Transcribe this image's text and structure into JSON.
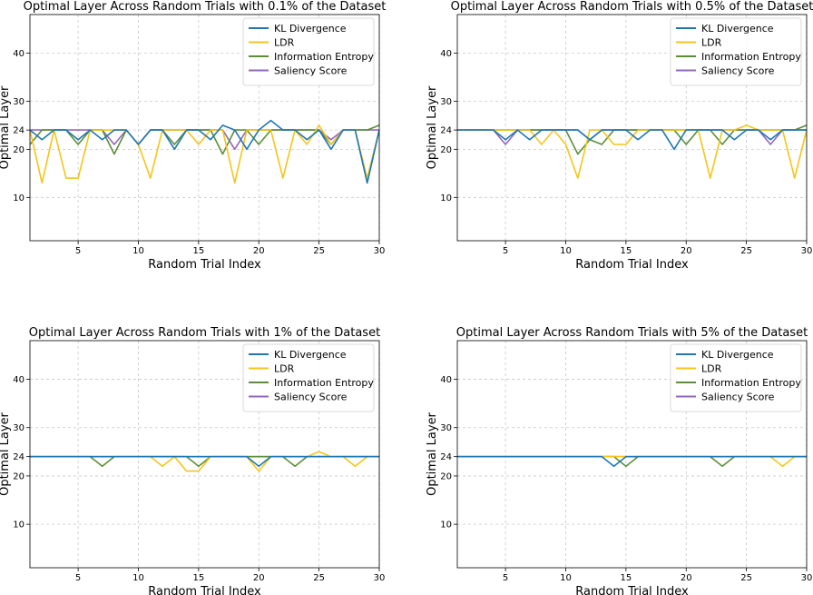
{
  "series_styles": [
    {
      "name": "KL Divergence",
      "color": "#1f77b4"
    },
    {
      "name": "LDR",
      "color": "#f5c518"
    },
    {
      "name": "Information Entropy",
      "color": "#5a8f3a"
    },
    {
      "name": "Saliency Score",
      "color": "#9467bd"
    }
  ],
  "chart_data": [
    {
      "type": "line",
      "title": "Optimal Layer Across Random Trials with 0.1% of the Dataset",
      "xlabel": "Random Trial Index",
      "ylabel": "Optimal Layer",
      "xlim": [
        1,
        30
      ],
      "ylim": [
        1,
        48
      ],
      "xticks": [
        5,
        10,
        15,
        20,
        25,
        30
      ],
      "yticks": [
        10,
        20,
        24,
        30,
        40
      ],
      "grid": true,
      "legend_position": "top-right",
      "x": [
        1,
        2,
        3,
        4,
        5,
        6,
        7,
        8,
        9,
        10,
        11,
        12,
        13,
        14,
        15,
        16,
        17,
        18,
        19,
        20,
        21,
        22,
        23,
        24,
        25,
        26,
        27,
        28,
        29,
        30
      ],
      "series": [
        {
          "name": "KL Divergence",
          "values": [
            24,
            22,
            24,
            24,
            22,
            24,
            22,
            24,
            24,
            21,
            24,
            24,
            20,
            24,
            24,
            22,
            25,
            24,
            20,
            24,
            26,
            24,
            24,
            22,
            24,
            20,
            24,
            24,
            13,
            24
          ]
        },
        {
          "name": "LDR",
          "values": [
            24,
            13,
            24,
            14,
            14,
            24,
            24,
            24,
            24,
            21,
            14,
            24,
            24,
            24,
            21,
            24,
            24,
            13,
            24,
            24,
            24,
            14,
            24,
            21,
            25,
            21,
            24,
            24,
            14,
            24
          ]
        },
        {
          "name": "Information Entropy",
          "values": [
            21,
            24,
            24,
            24,
            21,
            24,
            24,
            19,
            24,
            21,
            24,
            24,
            21,
            24,
            24,
            24,
            19,
            24,
            24,
            21,
            24,
            24,
            24,
            24,
            24,
            21,
            24,
            24,
            24,
            25
          ]
        },
        {
          "name": "Saliency Score",
          "values": [
            24,
            24,
            24,
            24,
            24,
            24,
            24,
            21,
            24,
            21,
            24,
            24,
            24,
            24,
            24,
            24,
            24,
            20,
            24,
            24,
            24,
            24,
            24,
            24,
            24,
            22,
            24,
            24,
            24,
            24
          ]
        }
      ]
    },
    {
      "type": "line",
      "title": "Optimal Layer Across Random Trials with 0.5% of the Dataset",
      "xlabel": "Random Trial Index",
      "ylabel": "Optimal Layer",
      "xlim": [
        1,
        30
      ],
      "ylim": [
        1,
        48
      ],
      "xticks": [
        5,
        10,
        15,
        20,
        25,
        30
      ],
      "yticks": [
        10,
        20,
        24,
        30,
        40
      ],
      "grid": true,
      "legend_position": "top-right",
      "x": [
        1,
        2,
        3,
        4,
        5,
        6,
        7,
        8,
        9,
        10,
        11,
        12,
        13,
        14,
        15,
        16,
        17,
        18,
        19,
        20,
        21,
        22,
        23,
        24,
        25,
        26,
        27,
        28,
        29,
        30
      ],
      "series": [
        {
          "name": "KL Divergence",
          "values": [
            24,
            24,
            24,
            24,
            22,
            24,
            22,
            24,
            24,
            24,
            24,
            22,
            24,
            24,
            24,
            22,
            24,
            24,
            20,
            24,
            24,
            24,
            24,
            22,
            24,
            24,
            22,
            24,
            24,
            24
          ]
        },
        {
          "name": "LDR",
          "values": [
            24,
            24,
            24,
            24,
            24,
            24,
            24,
            21,
            24,
            21,
            14,
            24,
            24,
            21,
            21,
            24,
            24,
            24,
            24,
            24,
            24,
            14,
            24,
            24,
            25,
            24,
            24,
            24,
            14,
            24
          ]
        },
        {
          "name": "Information Entropy",
          "values": [
            24,
            24,
            24,
            24,
            24,
            24,
            24,
            24,
            24,
            24,
            19,
            22,
            21,
            24,
            24,
            24,
            24,
            24,
            24,
            21,
            24,
            24,
            21,
            24,
            24,
            24,
            24,
            24,
            24,
            25
          ]
        },
        {
          "name": "Saliency Score",
          "values": [
            24,
            24,
            24,
            24,
            21,
            24,
            24,
            24,
            24,
            24,
            24,
            22,
            24,
            24,
            24,
            24,
            24,
            24,
            24,
            24,
            24,
            24,
            24,
            24,
            24,
            24,
            21,
            24,
            24,
            24
          ]
        }
      ]
    },
    {
      "type": "line",
      "title": "Optimal Layer Across Random Trials with 1% of the Dataset",
      "xlabel": "Random Trial Index",
      "ylabel": "Optimal Layer",
      "xlim": [
        1,
        30
      ],
      "ylim": [
        1,
        48
      ],
      "xticks": [
        5,
        10,
        15,
        20,
        25,
        30
      ],
      "yticks": [
        10,
        20,
        24,
        30,
        40
      ],
      "grid": true,
      "legend_position": "top-right",
      "x": [
        1,
        2,
        3,
        4,
        5,
        6,
        7,
        8,
        9,
        10,
        11,
        12,
        13,
        14,
        15,
        16,
        17,
        18,
        19,
        20,
        21,
        22,
        23,
        24,
        25,
        26,
        27,
        28,
        29,
        30
      ],
      "series": [
        {
          "name": "KL Divergence",
          "values": [
            24,
            24,
            24,
            24,
            24,
            24,
            24,
            24,
            24,
            24,
            24,
            24,
            24,
            24,
            24,
            24,
            24,
            24,
            24,
            22,
            24,
            24,
            24,
            24,
            24,
            24,
            24,
            24,
            24,
            24
          ]
        },
        {
          "name": "LDR",
          "values": [
            24,
            24,
            24,
            24,
            24,
            24,
            24,
            24,
            24,
            24,
            24,
            22,
            24,
            21,
            21,
            24,
            24,
            24,
            24,
            21,
            24,
            24,
            24,
            24,
            25,
            24,
            24,
            22,
            24,
            24
          ]
        },
        {
          "name": "Information Entropy",
          "values": [
            24,
            24,
            24,
            24,
            24,
            24,
            22,
            24,
            24,
            24,
            24,
            24,
            24,
            24,
            22,
            24,
            24,
            24,
            24,
            24,
            24,
            24,
            22,
            24,
            24,
            24,
            24,
            24,
            24,
            24
          ]
        },
        {
          "name": "Saliency Score",
          "values": [
            24,
            24,
            24,
            24,
            24,
            24,
            24,
            24,
            24,
            24,
            24,
            24,
            24,
            24,
            24,
            24,
            24,
            24,
            24,
            24,
            24,
            24,
            24,
            24,
            24,
            24,
            24,
            24,
            24,
            24
          ]
        }
      ]
    },
    {
      "type": "line",
      "title": "Optimal Layer Across Random Trials with 5% of the Dataset",
      "xlabel": "Random Trial Index",
      "ylabel": "Optimal Layer",
      "xlim": [
        1,
        30
      ],
      "ylim": [
        1,
        48
      ],
      "xticks": [
        5,
        10,
        15,
        20,
        25,
        30
      ],
      "yticks": [
        10,
        20,
        24,
        30,
        40
      ],
      "grid": true,
      "legend_position": "top-right",
      "x": [
        1,
        2,
        3,
        4,
        5,
        6,
        7,
        8,
        9,
        10,
        11,
        12,
        13,
        14,
        15,
        16,
        17,
        18,
        19,
        20,
        21,
        22,
        23,
        24,
        25,
        26,
        27,
        28,
        29,
        30
      ],
      "series": [
        {
          "name": "KL Divergence",
          "values": [
            24,
            24,
            24,
            24,
            24,
            24,
            24,
            24,
            24,
            24,
            24,
            24,
            24,
            22,
            24,
            24,
            24,
            24,
            24,
            24,
            24,
            24,
            24,
            24,
            24,
            24,
            24,
            24,
            24,
            24
          ]
        },
        {
          "name": "LDR",
          "values": [
            24,
            24,
            24,
            24,
            24,
            24,
            24,
            24,
            24,
            24,
            24,
            24,
            24,
            24,
            24,
            24,
            24,
            24,
            24,
            24,
            24,
            24,
            24,
            24,
            24,
            24,
            24,
            22,
            24,
            24
          ]
        },
        {
          "name": "Information Entropy",
          "values": [
            24,
            24,
            24,
            24,
            24,
            24,
            24,
            24,
            24,
            24,
            24,
            24,
            24,
            24,
            22,
            24,
            24,
            24,
            24,
            24,
            24,
            24,
            22,
            24,
            24,
            24,
            24,
            24,
            24,
            24
          ]
        },
        {
          "name": "Saliency Score",
          "values": [
            24,
            24,
            24,
            24,
            24,
            24,
            24,
            24,
            24,
            24,
            24,
            24,
            24,
            24,
            24,
            24,
            24,
            24,
            24,
            24,
            24,
            24,
            24,
            24,
            24,
            24,
            24,
            24,
            24,
            24
          ]
        }
      ]
    }
  ]
}
